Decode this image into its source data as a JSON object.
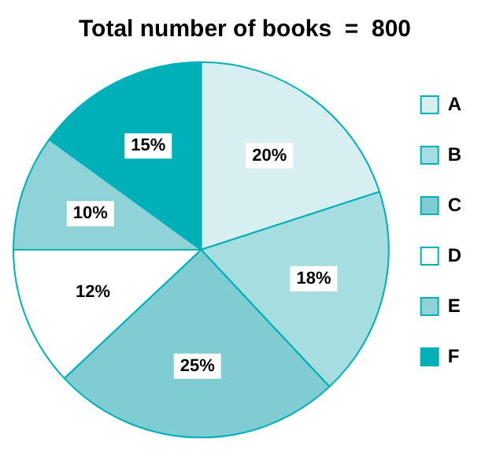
{
  "chart_data": {
    "type": "pie",
    "title": "Total number of books  =  800",
    "categories": [
      "A",
      "B",
      "C",
      "D",
      "E",
      "F"
    ],
    "values": [
      20,
      18,
      25,
      12,
      10,
      15
    ],
    "value_labels": [
      "20%",
      "18%",
      "25%",
      "12%",
      "10%",
      "15%"
    ],
    "colors": [
      "#d8eff1",
      "#a6dde1",
      "#7fcdd3",
      "#ffffff",
      "#8fd3d8",
      "#00b0b9"
    ],
    "legend": "right"
  }
}
